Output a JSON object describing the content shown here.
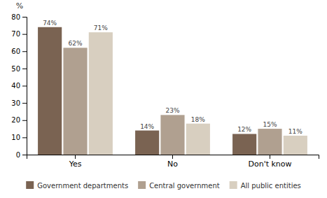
{
  "chart_data": {
    "type": "bar",
    "categories": [
      "Yes",
      "No",
      "Don't know"
    ],
    "series": [
      {
        "name": "Government departments",
        "color": "#7a6352",
        "values": [
          74,
          14,
          12
        ],
        "value_labels": [
          "74%",
          "14%",
          "12%"
        ]
      },
      {
        "name": "Central government",
        "color": "#b0a090",
        "values": [
          62,
          23,
          15
        ],
        "value_labels": [
          "62%",
          "23%",
          "15%"
        ]
      },
      {
        "name": "All public entities",
        "color": "#d8cfc0",
        "values": [
          71,
          18,
          11
        ],
        "value_labels": [
          "71%",
          "18%",
          "11%"
        ]
      }
    ],
    "ylabel": "%",
    "ylim": [
      0,
      80
    ],
    "yticks": [
      0,
      10,
      20,
      30,
      40,
      50,
      60,
      70,
      80
    ],
    "data_labels": true,
    "grid": false,
    "legend": "bottom"
  }
}
